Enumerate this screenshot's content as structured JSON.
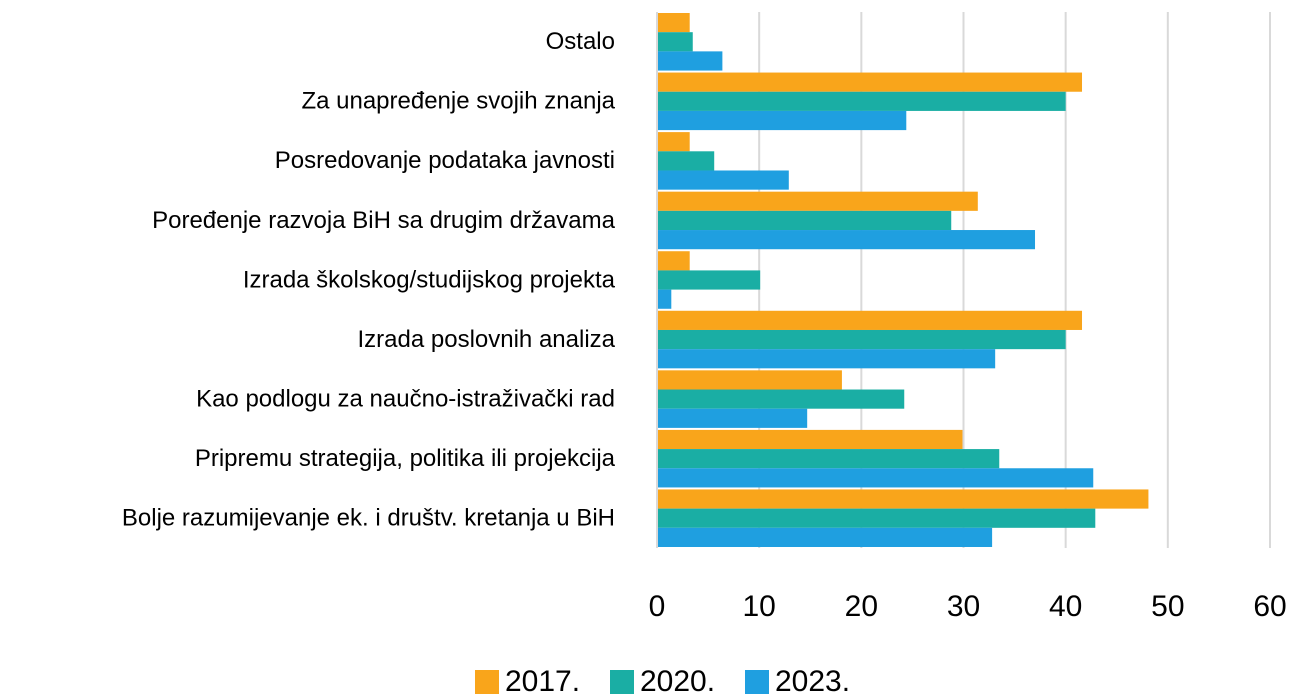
{
  "chart_data": {
    "type": "barh",
    "categories": [
      "Ostalo",
      "Za unapređenje svojih znanja",
      "Posredovanje podataka javnosti",
      "Poređenje razvoja BiH sa drugim državama",
      "Izrada školskog/studijskog projekta",
      "Izrada poslovnih analiza",
      "Kao podlogu za naučno-istraživački rad",
      "Pripremu strategija, politika ili projekcija",
      "Bolje razumijevanje ek. i društv. kretanja u BiH"
    ],
    "series": [
      {
        "name": "2017.",
        "color": "#f9a51b",
        "values": [
          3.2,
          41.6,
          3.2,
          31.4,
          3.2,
          41.6,
          18.1,
          29.9,
          48.1
        ]
      },
      {
        "name": "2020.",
        "color": "#1aaea4",
        "values": [
          3.5,
          40.0,
          5.6,
          28.8,
          10.1,
          40.0,
          24.2,
          33.5,
          42.9
        ]
      },
      {
        "name": "2023.",
        "color": "#1f9fe0",
        "values": [
          6.4,
          24.4,
          12.9,
          37.0,
          1.4,
          33.1,
          14.7,
          42.7,
          32.8
        ]
      }
    ],
    "xlim": [
      0,
      60
    ],
    "xticks": [
      0,
      10,
      20,
      30,
      40,
      50,
      60
    ],
    "grid": true,
    "legend": "bottom"
  }
}
